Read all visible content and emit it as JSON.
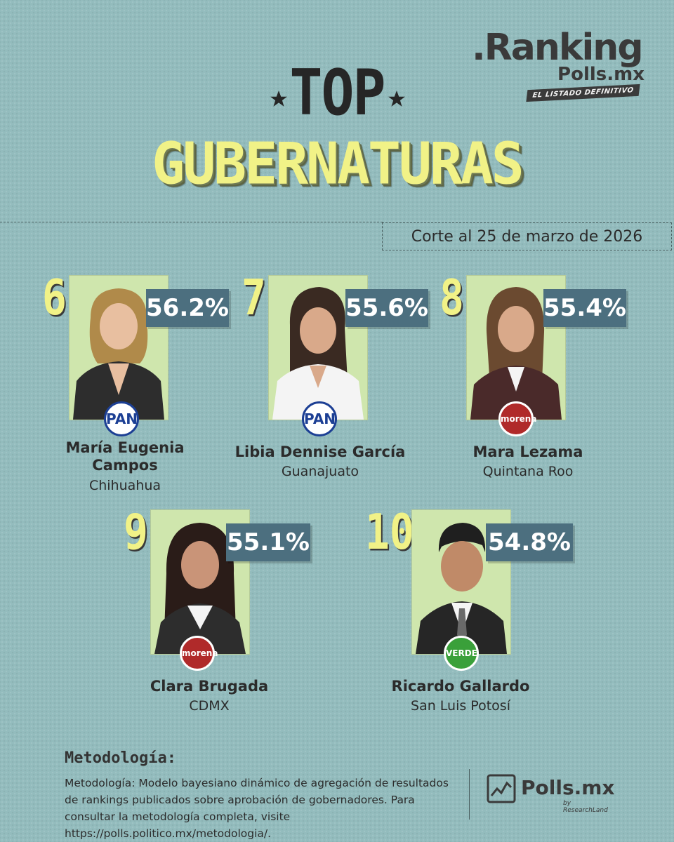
{
  "logo": {
    "ranking": ".Ranking",
    "polls": "Polls.mx",
    "tagline": "EL LISTADO DEFINITIVO"
  },
  "title": {
    "top": "TOP",
    "main": "GUBERNATURAS"
  },
  "date_label": "Corte al 25 de marzo de 2026",
  "colors": {
    "background": "#93bcbd",
    "accent_yellow": "#f1f287",
    "percent_bar": "#4c6f7f",
    "photo_bg": "#cfe6ad"
  },
  "governors": [
    {
      "rank": "6",
      "percent": "56.2%",
      "approval": 56.2,
      "name_line1": "María Eugenia",
      "name_line2": "Campos",
      "state": "Chihuahua",
      "party": "PAN",
      "party_icon": "pan-logo-icon"
    },
    {
      "rank": "7",
      "percent": "55.6%",
      "approval": 55.6,
      "name_line1": "Libia Dennise García",
      "name_line2": "",
      "state": "Guanajuato",
      "party": "PAN",
      "party_icon": "pan-logo-icon"
    },
    {
      "rank": "8",
      "percent": "55.4%",
      "approval": 55.4,
      "name_line1": "Mara Lezama",
      "name_line2": "",
      "state": "Quintana Roo",
      "party": "morena",
      "party_icon": "morena-logo-icon"
    },
    {
      "rank": "9",
      "percent": "55.1%",
      "approval": 55.1,
      "name_line1": "Clara Brugada",
      "name_line2": "",
      "state": "CDMX",
      "party": "morena",
      "party_icon": "morena-logo-icon"
    },
    {
      "rank": "10",
      "percent": "54.8%",
      "approval": 54.8,
      "name_line1": "Ricardo Gallardo",
      "name_line2": "",
      "state": "San Luis Potosí",
      "party": "VERDE",
      "party_icon": "verde-logo-icon"
    }
  ],
  "methodology": {
    "title": "Metodología:",
    "text": "Metodología: Modelo bayesiano dinámico de agregación de resultados de rankings publicados sobre aprobación de gobernadores. Para consultar la metodología completa, visite https://polls.politico.mx/metodologia/."
  },
  "footer_logo": {
    "text": "Polls.mx",
    "sub": "by ResearchLand"
  }
}
